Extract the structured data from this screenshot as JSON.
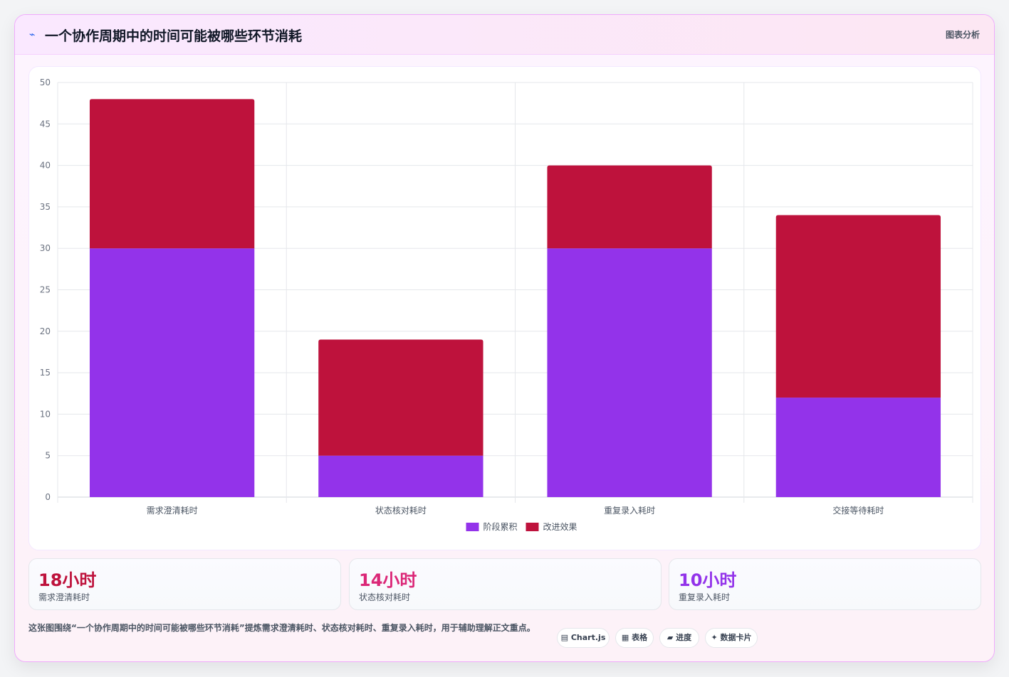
{
  "header": {
    "icon": "⌁",
    "title": "一个协作周期中的时间可能被哪些环节消耗",
    "tag": "图表分析"
  },
  "chart_data": {
    "type": "bar",
    "stacked": true,
    "categories": [
      "需求澄清耗时",
      "状态核对耗时",
      "重复录入耗时",
      "交接等待耗时"
    ],
    "series": [
      {
        "name": "阶段累积",
        "color": "#9333ea",
        "values": [
          30,
          5,
          30,
          12
        ]
      },
      {
        "name": "改进效果",
        "color": "#be123c",
        "values": [
          18,
          14,
          10,
          22
        ]
      }
    ],
    "ylim": [
      0,
      50
    ],
    "yticks": [
      0,
      5,
      10,
      15,
      20,
      25,
      30,
      35,
      40,
      45,
      50
    ],
    "grid": true,
    "legend": "bottom"
  },
  "stats": [
    {
      "value": "18小时",
      "label": "需求澄清耗时",
      "color": "#be123c"
    },
    {
      "value": "14小时",
      "label": "状态核对耗时",
      "color": "#db2777"
    },
    {
      "value": "10小时",
      "label": "重复录入耗时",
      "color": "#9333ea"
    }
  ],
  "footnote": "这张图围绕“一个协作周期中的时间可能被哪些环节消耗”提炼需求澄清耗时、状态核对耗时、重复录入耗时，用于辅助理解正文重点。",
  "chips": [
    {
      "icon": "▤",
      "label": "Chart.js"
    },
    {
      "icon": "▦",
      "label": "表格"
    },
    {
      "icon": "▰",
      "label": "进度"
    },
    {
      "icon": "✦",
      "label": "数据卡片"
    }
  ]
}
